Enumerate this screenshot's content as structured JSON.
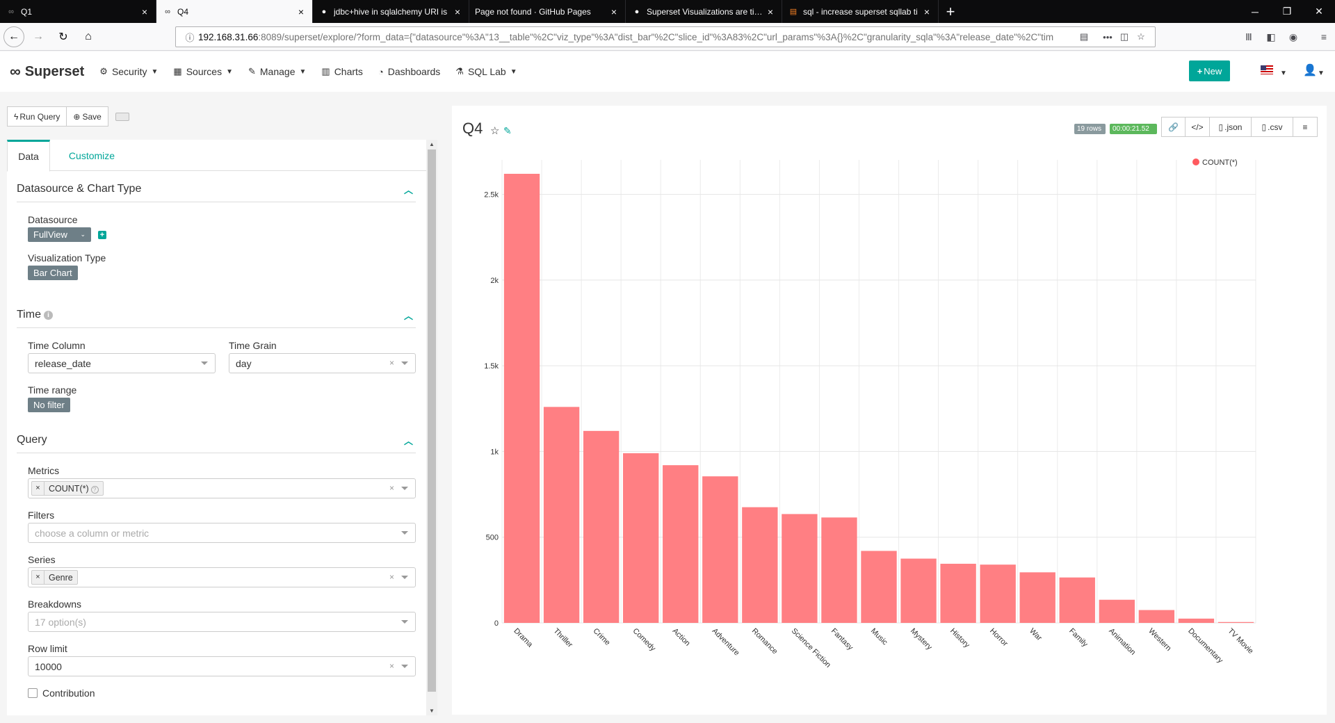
{
  "browser": {
    "tabs": [
      {
        "title": "Q1",
        "icon": "superset-icon",
        "active": false
      },
      {
        "title": "Q4",
        "icon": "superset-icon",
        "active": true
      },
      {
        "title": "jdbc+hive in sqlalchemy URI is",
        "icon": "github-icon",
        "active": false
      },
      {
        "title": "Page not found · GitHub Pages",
        "icon": "",
        "active": false
      },
      {
        "title": "Superset Visualizations are time",
        "icon": "github-icon",
        "active": false
      },
      {
        "title": "sql - increase superset sqllab ti",
        "icon": "stackoverflow-icon",
        "active": false
      }
    ],
    "url_host": "192.168.31.66",
    "url_rest": ":8089/superset/explore/?form_data={\"datasource\"%3A\"13__table\"%2C\"viz_type\"%3A\"dist_bar\"%2C\"slice_id\"%3A83%2C\"url_params\"%3A{}%2C\"granularity_sqla\"%3A\"release_date\"%2C\"tim"
  },
  "header": {
    "brand": "Superset",
    "menu": [
      {
        "label": "Security",
        "icon": "cogs-icon",
        "dropdown": true
      },
      {
        "label": "Sources",
        "icon": "database-icon",
        "dropdown": true
      },
      {
        "label": "Manage",
        "icon": "wrench-icon",
        "dropdown": true
      },
      {
        "label": "Charts",
        "icon": "bar-chart-icon",
        "dropdown": false
      },
      {
        "label": "Dashboards",
        "icon": "dashboard-icon",
        "dropdown": false
      },
      {
        "label": "SQL Lab",
        "icon": "flask-icon",
        "dropdown": true
      }
    ],
    "new_label": "New"
  },
  "toolbar": {
    "run_query": "Run Query",
    "save": "Save"
  },
  "panel": {
    "tabs": {
      "data": "Data",
      "customize": "Customize"
    },
    "datasource_section": {
      "title": "Datasource & Chart Type",
      "datasource_label": "Datasource",
      "datasource_value": "FullView",
      "viz_type_label": "Visualization Type",
      "viz_type_value": "Bar Chart"
    },
    "time_section": {
      "title": "Time",
      "time_column_label": "Time Column",
      "time_column_value": "release_date",
      "time_grain_label": "Time Grain",
      "time_grain_value": "day",
      "time_range_label": "Time range",
      "time_range_value": "No filter"
    },
    "query_section": {
      "title": "Query",
      "metrics_label": "Metrics",
      "metrics_value": "COUNT(*)",
      "filters_label": "Filters",
      "filters_placeholder": "choose a column or metric",
      "series_label": "Series",
      "series_value": "Genre",
      "breakdowns_label": "Breakdowns",
      "breakdowns_placeholder": "17 option(s)",
      "row_limit_label": "Row limit",
      "row_limit_value": "10000",
      "contribution_label": "Contribution"
    }
  },
  "chart_panel": {
    "title": "Q4",
    "rows_badge": "19 rows",
    "time_badge": "00:00:21.52",
    "json_label": ".json",
    "csv_label": ".csv"
  },
  "colors": {
    "accent": "#00a699",
    "bar": "#ff7f83",
    "legend_dot": "#ff5a5f",
    "rows_badge": "#8a9a9e",
    "time_badge": "#5cb85c"
  },
  "chart_data": {
    "type": "bar",
    "categories": [
      "Drama",
      "Thriller",
      "Crime",
      "Comedy",
      "Action",
      "Adventure",
      "Romance",
      "Science Fiction",
      "Fantasy",
      "Music",
      "Mystery",
      "History",
      "Horror",
      "War",
      "Family",
      "Animation",
      "Western",
      "Documentary",
      "TV Movie"
    ],
    "series": [
      {
        "name": "COUNT(*)",
        "values": [
          2620,
          1260,
          1120,
          990,
          920,
          855,
          675,
          635,
          615,
          420,
          375,
          345,
          340,
          295,
          265,
          135,
          75,
          25,
          5
        ]
      }
    ],
    "yticks": [
      "0",
      "500",
      "1k",
      "1.5k",
      "2k",
      "2.5k"
    ],
    "ylim": [
      0,
      2620
    ],
    "grid": true,
    "legend_position": "top-right"
  }
}
